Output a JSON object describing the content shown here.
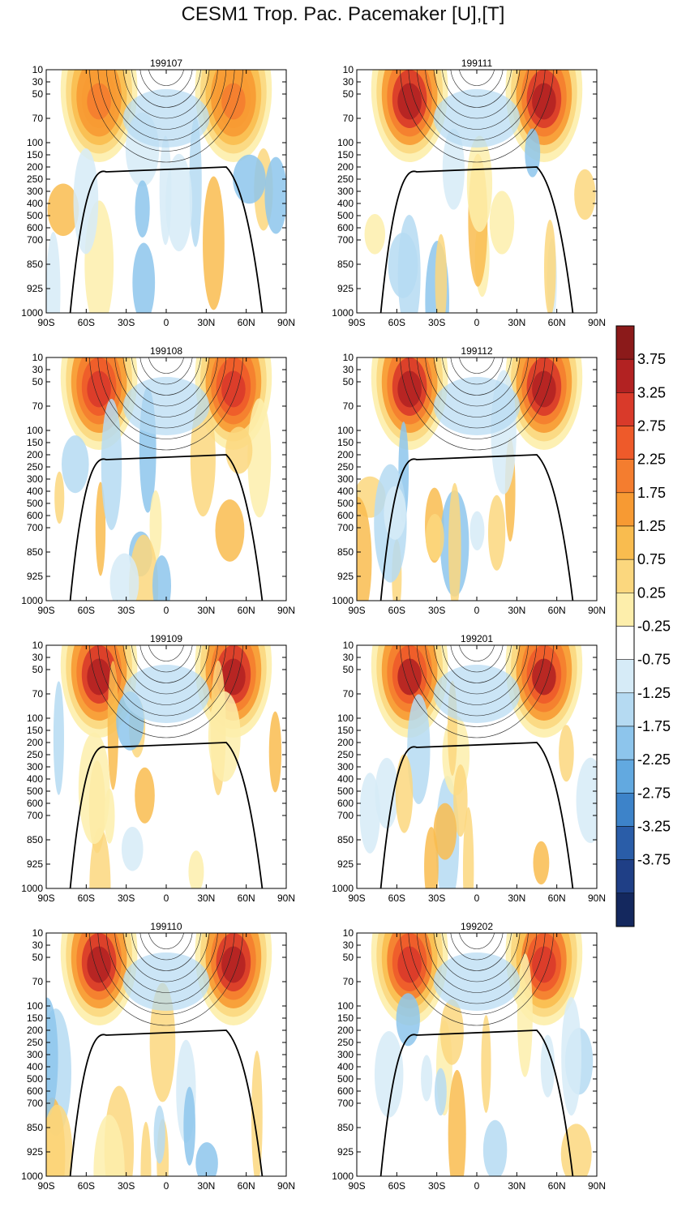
{
  "title": "CESM1 Trop. Pac. Pacemaker [U],[T]",
  "chart_data": {
    "type": "heatmap",
    "description_of_axes": "latitude (x) vs pressure level in hPa (y)",
    "panels": [
      {
        "name": "199107"
      },
      {
        "name": "199111"
      },
      {
        "name": "199108"
      },
      {
        "name": "199112"
      },
      {
        "name": "199109"
      },
      {
        "name": "199201"
      },
      {
        "name": "199110"
      },
      {
        "name": "199202"
      }
    ],
    "x_ticks": [
      "90S",
      "60S",
      "30S",
      "0",
      "30N",
      "60N",
      "90N"
    ],
    "x_values": [
      -90,
      -60,
      -30,
      0,
      30,
      60,
      90
    ],
    "y_ticks": [
      "10",
      "30",
      "50",
      "70",
      "100",
      "150",
      "200",
      "250",
      "300",
      "400",
      "500",
      "600",
      "700",
      "850",
      "925",
      "1000"
    ],
    "y_values": [
      10,
      30,
      50,
      70,
      100,
      150,
      200,
      250,
      300,
      400,
      500,
      600,
      700,
      850,
      925,
      1000
    ],
    "colorbar": {
      "labels": [
        "3.75",
        "3.25",
        "2.75",
        "2.25",
        "1.75",
        "1.25",
        "0.75",
        "0.25",
        "-0.25",
        "-0.75",
        "-1.25",
        "-1.75",
        "-2.25",
        "-2.75",
        "-3.25",
        "-3.75"
      ],
      "colors": [
        "#8b1a1a",
        "#b22222",
        "#d93a2a",
        "#ee5a2a",
        "#f47d2f",
        "#f79a33",
        "#f9bc4f",
        "#fbd77e",
        "#fdeeab",
        "#ffffff",
        "#d6ebf7",
        "#b5daf2",
        "#8dc5ec",
        "#62a9e0",
        "#3d83c9",
        "#2a5da8",
        "#1f3f86",
        "#14285e"
      ]
    }
  }
}
